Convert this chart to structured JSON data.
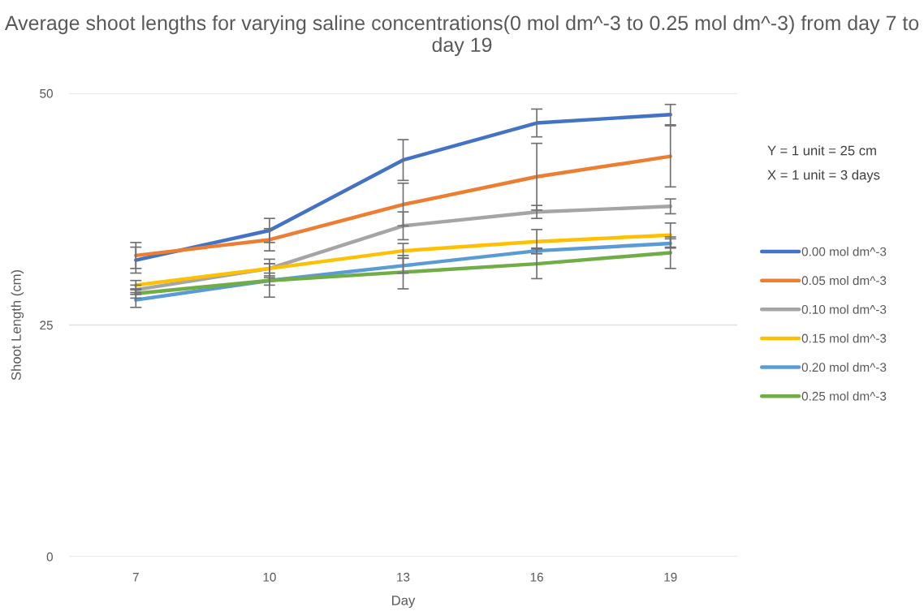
{
  "chart_data": {
    "type": "line",
    "title": "Average shoot lengths for varying saline concentrations(0 mol dm^-3 to 0.25 mol dm^-3) from day 7 to day 19",
    "xlabel": "Day",
    "ylabel": "Shoot Length (cm)",
    "categories": [
      "7",
      "10",
      "13",
      "16",
      "19"
    ],
    "ylim": [
      0,
      50
    ],
    "yticks": [
      0,
      25,
      50
    ],
    "grid": "y",
    "legend": "right",
    "line_style": "solid",
    "marker": "none",
    "annotations": [
      "Y = 1 unit = 25 cm",
      "X = 1 unit = 3 days"
    ],
    "series": [
      {
        "name": "0.00 mol dm^-3",
        "color": "#4472c4",
        "values": [
          32.0,
          35.2,
          42.8,
          46.8,
          47.7
        ],
        "errors": [
          1.4,
          1.3,
          2.2,
          1.5,
          1.1
        ]
      },
      {
        "name": "0.05 mol dm^-3",
        "color": "#ed7d31",
        "values": [
          32.5,
          34.2,
          38.0,
          41.0,
          43.2
        ],
        "errors": [
          1.4,
          1.2,
          2.3,
          3.6,
          3.3
        ]
      },
      {
        "name": "0.10 mol dm^-3",
        "color": "#a5a5a5",
        "values": [
          28.8,
          31.1,
          35.7,
          37.2,
          37.8
        ],
        "errors": [
          0.5,
          1.0,
          1.5,
          0.7,
          0.8
        ]
      },
      {
        "name": "0.15 mol dm^-3",
        "color": "#ffc000",
        "values": [
          29.3,
          31.1,
          33.0,
          34.0,
          34.7
        ],
        "errors": [
          0.5,
          0.5,
          0.8,
          1.3,
          1.3
        ]
      },
      {
        "name": "0.20 mol dm^-3",
        "color": "#5b9bd5",
        "values": [
          27.7,
          29.8,
          31.4,
          33.0,
          33.8
        ],
        "errors": [
          0.8,
          0.5,
          0.8,
          0.3,
          0.5
        ]
      },
      {
        "name": "0.25 mol dm^-3",
        "color": "#70ad47",
        "values": [
          28.4,
          29.8,
          30.7,
          31.6,
          32.8
        ],
        "errors": [
          0.5,
          1.8,
          1.8,
          1.6,
          1.7
        ]
      }
    ]
  }
}
